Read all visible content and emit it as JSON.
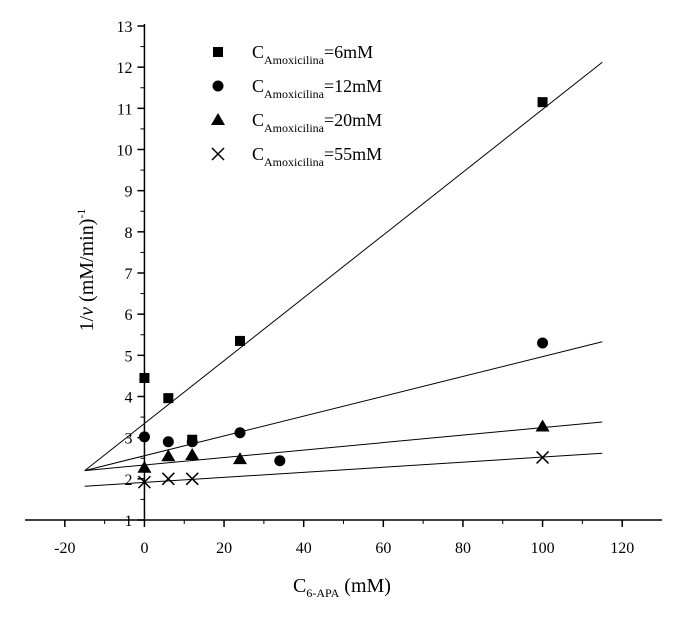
{
  "chart_data": {
    "type": "scatter",
    "title": "",
    "xlabel": {
      "main": "C",
      "sub": "6-APA",
      "unit": " (mM)"
    },
    "ylabel": {
      "prefix": "1/",
      "var": "v",
      "unit": " (mM/min)",
      "sup": "-1"
    },
    "xlim": [
      -30,
      130
    ],
    "ylim": [
      1,
      13
    ],
    "xticks": [
      -20,
      0,
      20,
      40,
      60,
      80,
      100,
      120
    ],
    "yticks": [
      1,
      2,
      3,
      4,
      5,
      6,
      7,
      8,
      9,
      10,
      11,
      12,
      13
    ],
    "y_axis_at_x": 0,
    "grid": false,
    "legend_position": "top-center",
    "series": [
      {
        "name": {
          "main": "C",
          "sub": "Amoxicilina",
          "rest": "=6mM"
        },
        "marker": "square",
        "points": [
          [
            0,
            4.45
          ],
          [
            6,
            3.96
          ],
          [
            12,
            2.95
          ],
          [
            24,
            5.35
          ],
          [
            100,
            11.15
          ]
        ],
        "fit": {
          "x": [
            -15,
            115
          ],
          "y": [
            2.2,
            12.12
          ]
        }
      },
      {
        "name": {
          "main": "C",
          "sub": "Amoxicilina",
          "rest": "=12mM"
        },
        "marker": "circle",
        "points": [
          [
            0,
            3.02
          ],
          [
            6,
            2.9
          ],
          [
            12,
            2.9
          ],
          [
            24,
            3.12
          ],
          [
            34,
            2.44
          ],
          [
            100,
            5.3
          ]
        ],
        "fit": {
          "x": [
            -15,
            115
          ],
          "y": [
            2.2,
            5.33
          ]
        }
      },
      {
        "name": {
          "main": "C",
          "sub": "Amoxicilina",
          "rest": "=20mM"
        },
        "marker": "triangle",
        "points": [
          [
            0,
            2.27
          ],
          [
            6,
            2.55
          ],
          [
            12,
            2.58
          ],
          [
            24,
            2.48
          ],
          [
            100,
            3.27
          ]
        ],
        "fit": {
          "x": [
            -15,
            115
          ],
          "y": [
            2.2,
            3.38
          ]
        }
      },
      {
        "name": {
          "main": "C",
          "sub": "Amoxicilina",
          "rest": "=55mM"
        },
        "marker": "x",
        "points": [
          [
            0,
            1.92
          ],
          [
            6,
            2.0
          ],
          [
            12,
            2.0
          ],
          [
            100,
            2.52
          ]
        ],
        "fit": {
          "x": [
            -15,
            115
          ],
          "y": [
            1.82,
            2.62
          ]
        }
      }
    ]
  }
}
